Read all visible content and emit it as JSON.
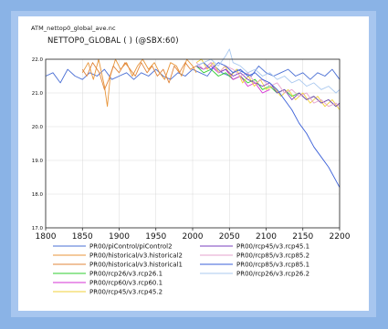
{
  "file_name": "ATM_nettop0_global_ave.nc",
  "title": "NETTOP0_GLOBAL ( ) (@SBX:60)",
  "chart_data": {
    "type": "line",
    "title": "NETTOP0_GLOBAL ( ) (@SBX:60)",
    "xlabel": "",
    "ylabel": "",
    "xlim": [
      1800,
      2200
    ],
    "ylim": [
      17.0,
      22.0
    ],
    "xticks": [
      "1800",
      "1850",
      "1900",
      "1950",
      "2000",
      "2050",
      "2100",
      "2150",
      "2200"
    ],
    "yticks": [
      "17.0",
      "18.0",
      "19.0",
      "20.0",
      "21.0",
      "22.0"
    ],
    "grid": true,
    "legend": "below",
    "series": [
      {
        "name": "PR00/piControl/piControl2",
        "color": "#4a6fd4",
        "x": [
          1800,
          1810,
          1820,
          1830,
          1840,
          1850,
          1860,
          1870,
          1880,
          1890,
          1900,
          1910,
          1920,
          1930,
          1940,
          1950,
          1960,
          1970,
          1980,
          1990,
          2000,
          2010,
          2020,
          2030,
          2040,
          2050,
          2060,
          2070,
          2080,
          2090,
          2100,
          2110,
          2120,
          2130,
          2140,
          2150,
          2160,
          2170,
          2180,
          2190,
          2200
        ],
        "y": [
          21.5,
          21.6,
          21.3,
          21.7,
          21.5,
          21.4,
          21.6,
          21.5,
          21.7,
          21.4,
          21.5,
          21.6,
          21.4,
          21.6,
          21.5,
          21.7,
          21.5,
          21.4,
          21.6,
          21.5,
          21.7,
          21.6,
          21.5,
          21.8,
          21.6,
          21.5,
          21.7,
          21.6,
          21.5,
          21.8,
          21.6,
          21.5,
          21.6,
          21.7,
          21.5,
          21.6,
          21.4,
          21.6,
          21.5,
          21.7,
          21.4
        ]
      },
      {
        "name": "PR00/historical/v3.historical2",
        "color": "#e8953a",
        "x": [
          1850,
          1858,
          1865,
          1872,
          1880,
          1884,
          1888,
          1895,
          1902,
          1910,
          1918,
          1925,
          1932,
          1940,
          1948,
          1955,
          1962,
          1970,
          1978,
          1985,
          1992,
          2000,
          2005
        ],
        "y": [
          21.6,
          21.9,
          21.4,
          22.0,
          21.2,
          20.6,
          21.5,
          22.0,
          21.7,
          21.9,
          21.5,
          21.8,
          22.0,
          21.7,
          21.9,
          21.6,
          21.4,
          21.9,
          21.8,
          21.5,
          22.0,
          21.8,
          21.6
        ]
      },
      {
        "name": "PR00/historical/v3.historical1",
        "color": "#e0843a",
        "x": [
          1850,
          1856,
          1864,
          1873,
          1880,
          1886,
          1892,
          1900,
          1908,
          1915,
          1922,
          1930,
          1938,
          1945,
          1952,
          1960,
          1968,
          1975,
          1982,
          1990,
          1997,
          2005
        ],
        "y": [
          21.7,
          21.5,
          21.9,
          21.6,
          21.1,
          21.4,
          21.8,
          21.6,
          21.9,
          21.7,
          21.5,
          21.9,
          21.6,
          21.8,
          21.5,
          21.7,
          21.3,
          21.8,
          21.6,
          21.9,
          21.7,
          21.8
        ]
      },
      {
        "name": "PR00/rcp26/v3.rcp26.1",
        "color": "#2ecc2e",
        "x": [
          2005,
          2015,
          2025,
          2035,
          2045,
          2055,
          2065,
          2075,
          2085,
          2095,
          2105,
          2115,
          2125,
          2135,
          2145,
          2155,
          2165,
          2175,
          2185,
          2195,
          2200
        ],
        "y": [
          21.8,
          21.6,
          21.7,
          21.5,
          21.6,
          21.4,
          21.5,
          21.3,
          21.4,
          21.1,
          21.2,
          21.0,
          21.1,
          20.9,
          21.0,
          20.8,
          20.9,
          20.7,
          20.8,
          20.6,
          20.7
        ]
      },
      {
        "name": "PR00/rcp60/v3.rcp60.1",
        "color": "#d630d6",
        "x": [
          2005,
          2015,
          2025,
          2035,
          2045,
          2055,
          2065,
          2075,
          2085,
          2095,
          2105
        ],
        "y": [
          21.8,
          21.7,
          21.8,
          21.6,
          21.7,
          21.4,
          21.5,
          21.2,
          21.3,
          21.0,
          21.1
        ]
      },
      {
        "name": "PR00/rcp45/v3.rcp45.2",
        "color": "#f2d23a",
        "x": [
          2005,
          2012,
          2020,
          2028,
          2036,
          2044,
          2052,
          2060,
          2068,
          2076,
          2084,
          2092,
          2100,
          2110,
          2120,
          2130,
          2140,
          2150,
          2160,
          2170,
          2180,
          2190,
          2200
        ],
        "y": [
          21.9,
          22.0,
          21.7,
          21.9,
          21.6,
          21.8,
          21.5,
          21.7,
          21.3,
          21.5,
          21.2,
          21.4,
          21.1,
          21.2,
          20.9,
          21.1,
          20.8,
          21.0,
          20.7,
          20.9,
          20.6,
          20.8,
          20.5
        ]
      },
      {
        "name": "PR00/rcp45/v3.rcp45.1",
        "color": "#7a3fbf",
        "x": [
          2005,
          2015,
          2025,
          2035,
          2045,
          2055,
          2065,
          2075,
          2085,
          2095,
          2105,
          2115,
          2125,
          2135,
          2145,
          2155,
          2165,
          2175,
          2185,
          2195,
          2200
        ],
        "y": [
          21.8,
          21.7,
          21.9,
          21.6,
          21.7,
          21.5,
          21.6,
          21.4,
          21.3,
          21.2,
          21.3,
          21.0,
          21.1,
          20.8,
          21.0,
          20.8,
          20.9,
          20.7,
          20.8,
          20.6,
          20.7
        ]
      },
      {
        "name": "PR00/rcp85/v3.rcp85.2",
        "color": "#e6a0cc",
        "x": [
          2005,
          2015,
          2025,
          2035,
          2045,
          2055,
          2065,
          2075,
          2085,
          2095,
          2105,
          2115,
          2125,
          2135,
          2145,
          2155,
          2165,
          2175,
          2185,
          2195,
          2200
        ],
        "y": [
          21.9,
          21.7,
          21.9,
          21.6,
          21.8,
          21.7,
          21.5,
          21.6,
          21.3,
          21.4,
          21.2,
          21.3,
          21.0,
          21.1,
          20.9,
          21.0,
          20.7,
          20.8,
          20.6,
          20.7,
          20.6
        ]
      },
      {
        "name": "PR00/rcp85/v3.rcp85.1",
        "color": "#3a5fd8",
        "x": [
          2005,
          2015,
          2025,
          2035,
          2045,
          2055,
          2065,
          2075,
          2085,
          2095,
          2105,
          2115,
          2125,
          2135,
          2145,
          2155,
          2165,
          2175,
          2185,
          2195,
          2200
        ],
        "y": [
          21.8,
          21.9,
          21.7,
          21.9,
          21.8,
          21.6,
          21.7,
          21.5,
          21.6,
          21.4,
          21.3,
          21.1,
          20.8,
          20.5,
          20.1,
          19.8,
          19.4,
          19.1,
          18.8,
          18.4,
          18.2
        ]
      },
      {
        "name": "PR00/rcp26/v3.rcp26.2",
        "color": "#a9c8ef",
        "x": [
          2005,
          2015,
          2025,
          2035,
          2045,
          2050,
          2055,
          2065,
          2075,
          2085,
          2095,
          2105,
          2115,
          2125,
          2135,
          2145,
          2155,
          2165,
          2175,
          2185,
          2195,
          2200
        ],
        "y": [
          21.8,
          21.9,
          22.0,
          21.8,
          22.1,
          22.3,
          21.9,
          21.8,
          21.6,
          21.7,
          21.5,
          21.6,
          21.4,
          21.5,
          21.3,
          21.4,
          21.2,
          21.3,
          21.1,
          21.2,
          21.0,
          21.1
        ]
      }
    ]
  },
  "colors": {
    "background": "#8ab3e6",
    "frame": "#a7c6ef",
    "panel": "#ffffff",
    "grid": "#d9d9d9"
  }
}
